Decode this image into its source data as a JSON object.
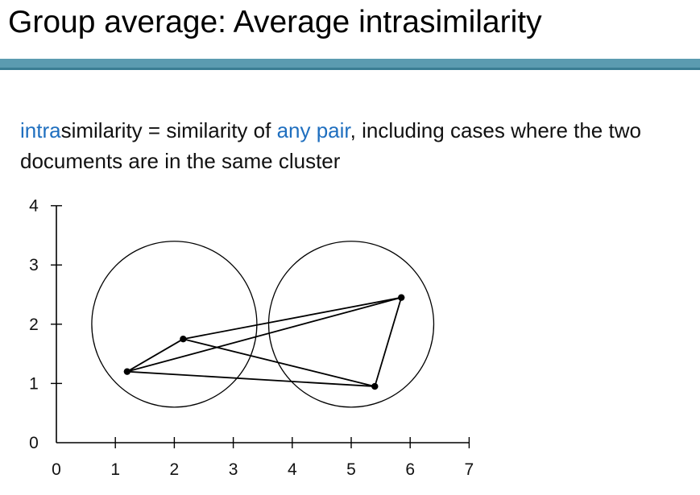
{
  "slide": {
    "title": "Group average: Average intrasimilarity",
    "accent_color": "#1f6fbf",
    "rule_color": "#5b9bb0",
    "definition": {
      "term_accent": "intra",
      "term_rest": "similarity",
      "text_1": " = similarity of ",
      "accent_phrase": "any pair",
      "text_2": ", including cases where the two documents are in the same cluster"
    }
  },
  "chart_data": {
    "type": "scatter",
    "xlim": [
      0,
      7
    ],
    "ylim": [
      0,
      4
    ],
    "x_ticks": [
      "0",
      "1",
      "2",
      "3",
      "4",
      "5",
      "6",
      "7"
    ],
    "y_ticks": [
      "0",
      "1",
      "2",
      "3",
      "4"
    ],
    "points": [
      {
        "x": 1.2,
        "y": 1.2
      },
      {
        "x": 2.15,
        "y": 1.75
      },
      {
        "x": 5.4,
        "y": 0.95
      },
      {
        "x": 5.85,
        "y": 2.45
      }
    ],
    "edges": [
      [
        0,
        1
      ],
      [
        0,
        2
      ],
      [
        0,
        3
      ],
      [
        1,
        2
      ],
      [
        1,
        3
      ],
      [
        2,
        3
      ]
    ],
    "clusters": [
      {
        "cx": 2.0,
        "cy": 2.0,
        "r": 1.4
      },
      {
        "cx": 5.0,
        "cy": 2.0,
        "r": 1.4
      }
    ]
  }
}
